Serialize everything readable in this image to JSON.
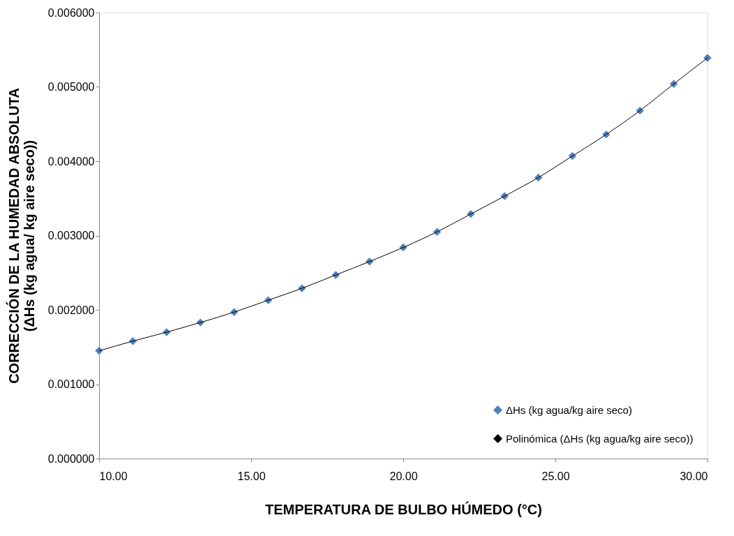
{
  "chart_data": {
    "type": "scatter",
    "xlabel": "TEMPERATURA DE BULBO HÚMEDO (°C)",
    "ylabel": "CORRECCIÓN DE LA HUMEDAD ABSOLUTA\n(ΔHs (kg agua/ kg aire seco))",
    "x": [
      10,
      11.11,
      12.22,
      13.33,
      14.44,
      15.56,
      16.67,
      17.78,
      18.89,
      20,
      21.11,
      22.22,
      23.33,
      24.44,
      25.56,
      26.67,
      27.78,
      28.89,
      30
    ],
    "series": [
      {
        "name": "ΔHs (kg agua/kg aire seco)",
        "marker": "diamond",
        "color": "#4f81bd",
        "values": [
          0.00145,
          0.00158,
          0.0017,
          0.00183,
          0.00197,
          0.00213,
          0.00229,
          0.00247,
          0.00265,
          0.00284,
          0.00305,
          0.00329,
          0.00353,
          0.00378,
          0.00407,
          0.00436,
          0.00468,
          0.00504,
          0.00539
        ]
      },
      {
        "name": "Polinómica (ΔHs (kg agua/kg aire seco))",
        "type": "line",
        "line_style": "solid",
        "color": "#000000",
        "values": [
          0.00145,
          0.00158,
          0.0017,
          0.00183,
          0.00197,
          0.00213,
          0.00229,
          0.00247,
          0.00265,
          0.00284,
          0.00305,
          0.00329,
          0.00353,
          0.00378,
          0.00407,
          0.00436,
          0.00468,
          0.00504,
          0.00539
        ]
      }
    ],
    "xlim": [
      10,
      30
    ],
    "xticks": [
      {
        "value": 10,
        "label": "10.00"
      },
      {
        "value": 15,
        "label": "15.00"
      },
      {
        "value": 20,
        "label": "20.00"
      },
      {
        "value": 25,
        "label": "25.00"
      },
      {
        "value": 30,
        "label": "30.00"
      }
    ],
    "ylim": [
      0,
      0.006
    ],
    "yticks": [
      {
        "value": 0,
        "label": "0.000000"
      },
      {
        "value": 0.001,
        "label": "0.001000"
      },
      {
        "value": 0.002,
        "label": "0.002000"
      },
      {
        "value": 0.003,
        "label": "0.003000"
      },
      {
        "value": 0.004,
        "label": "0.004000"
      },
      {
        "value": 0.005,
        "label": "0.005000"
      },
      {
        "value": 0.006,
        "label": "0.006000"
      }
    ],
    "grid": false,
    "legend": "bottom right"
  }
}
